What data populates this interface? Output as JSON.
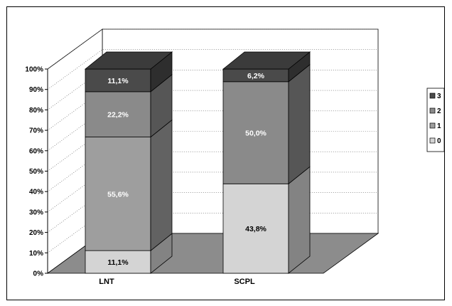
{
  "chart_data": {
    "type": "bar",
    "stacked": true,
    "three_d": true,
    "categories": [
      "LNT",
      "SCPL"
    ],
    "series": [
      {
        "name": "0",
        "values": [
          11.1,
          43.8
        ],
        "labels": [
          "11,1%",
          "43,8%"
        ],
        "color": "#d4d4d4",
        "label_color": "#000000"
      },
      {
        "name": "1",
        "values": [
          55.6,
          0.0
        ],
        "labels": [
          "55,6%",
          ""
        ],
        "color": "#9e9e9e",
        "label_color": "#ffffff"
      },
      {
        "name": "2",
        "values": [
          22.2,
          50.0
        ],
        "labels": [
          "22,2%",
          "50,0%"
        ],
        "color": "#8a8a8a",
        "label_color": "#ffffff"
      },
      {
        "name": "3",
        "values": [
          11.1,
          6.2
        ],
        "labels": [
          "11,1%",
          "6,2%"
        ],
        "color": "#4a4a4a",
        "label_color": "#ffffff"
      }
    ],
    "y_ticks": [
      "0%",
      "10%",
      "20%",
      "30%",
      "40%",
      "50%",
      "60%",
      "70%",
      "80%",
      "90%",
      "100%"
    ],
    "ylim": [
      0,
      100
    ],
    "grid": true,
    "legend_position": "right",
    "legend_order": [
      "3",
      "2",
      "1",
      "0"
    ],
    "floor_color": "#8c8c8c"
  }
}
